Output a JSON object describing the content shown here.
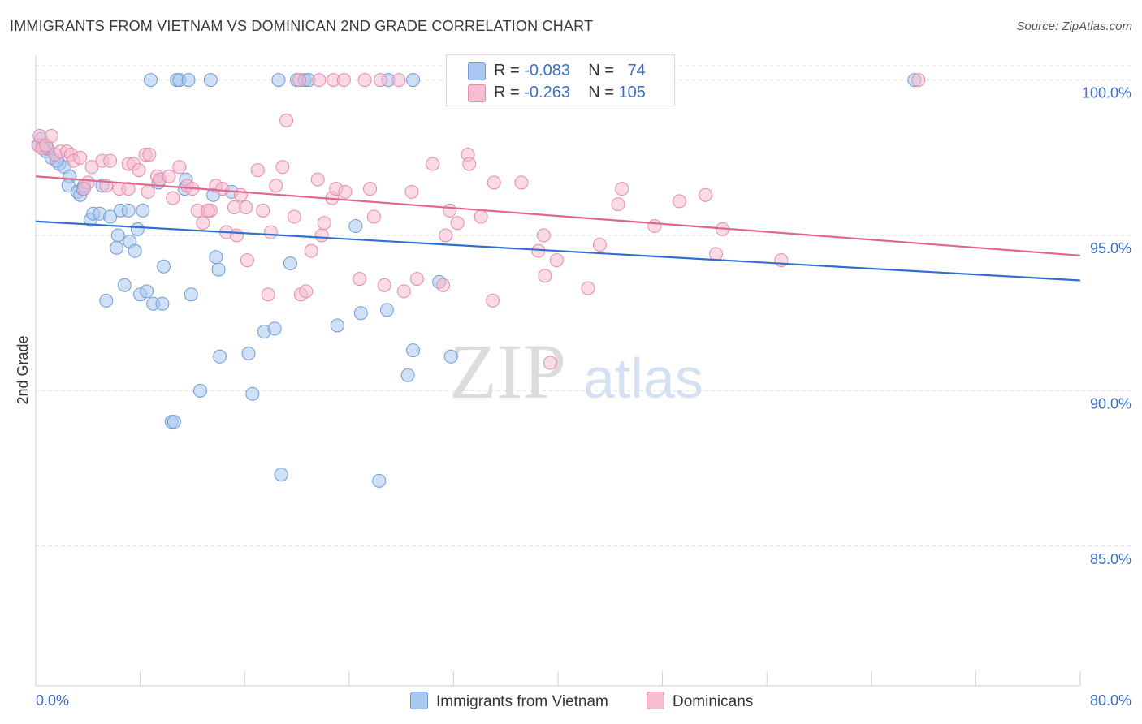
{
  "title": "IMMIGRANTS FROM VIETNAM VS DOMINICAN 2ND GRADE CORRELATION CHART",
  "source": "Source: ZipAtlas.com",
  "watermark": {
    "zip": "ZIP",
    "atlas": "atlas"
  },
  "legend": {
    "rows": [
      {
        "r_label": "R =",
        "r_value": "-0.083",
        "n_label": "N =",
        "n_value": "74",
        "fill": "#aac7f0",
        "stroke": "#6f9ad6"
      },
      {
        "r_label": "R =",
        "r_value": "-0.263",
        "n_label": "N =",
        "n_value": "105",
        "fill": "#f6bcd0",
        "stroke": "#e58aa8"
      }
    ]
  },
  "bottom_legend": [
    {
      "label": "Immigrants from Vietnam",
      "fill": "#aac7f0",
      "stroke": "#6f9ad6"
    },
    {
      "label": "Dominicans",
      "fill": "#f6bcd0",
      "stroke": "#e58aa8"
    }
  ],
  "chart_data": {
    "type": "scatter",
    "title": "IMMIGRANTS FROM VIETNAM VS DOMINICAN 2ND GRADE CORRELATION CHART",
    "xlabel": "",
    "ylabel": "2nd Grade",
    "xlim": [
      0,
      80
    ],
    "ylim": [
      80.5,
      100.8
    ],
    "x_tick_labels": [
      "0.0%",
      "80.0%"
    ],
    "y_ticks": [
      85,
      90,
      95,
      100
    ],
    "y_tick_labels": [
      "85.0%",
      "90.0%",
      "95.0%",
      "100.0%"
    ],
    "grid": true,
    "series": [
      {
        "name": "Immigrants from Vietnam",
        "color": "#6f9ad6",
        "fill": "#aac7f0",
        "line_color": "#2f6fcf",
        "trend": [
          [
            0,
            95.45
          ],
          [
            80,
            93.55
          ]
        ],
        "points": [
          [
            0.2,
            97.9
          ],
          [
            0.4,
            98.1
          ],
          [
            0.6,
            97.9
          ],
          [
            0.8,
            97.7
          ],
          [
            1.2,
            97.5
          ],
          [
            1.8,
            97.3
          ],
          [
            2.2,
            97.2
          ],
          [
            2.6,
            96.9
          ],
          [
            2.5,
            96.6
          ],
          [
            3.2,
            96.4
          ],
          [
            3.4,
            96.3
          ],
          [
            3.6,
            96.5
          ],
          [
            5.1,
            96.6
          ],
          [
            4.2,
            95.5
          ],
          [
            4.4,
            95.7
          ],
          [
            4.9,
            95.7
          ],
          [
            5.7,
            95.6
          ],
          [
            6.3,
            95.0
          ],
          [
            6.2,
            94.6
          ],
          [
            7.2,
            94.8
          ],
          [
            7.6,
            94.5
          ],
          [
            7.8,
            95.2
          ],
          [
            6.5,
            95.8
          ],
          [
            7.1,
            95.8
          ],
          [
            8.2,
            95.8
          ],
          [
            9.4,
            96.7
          ],
          [
            11.4,
            96.5
          ],
          [
            11.5,
            96.8
          ],
          [
            13.6,
            96.3
          ],
          [
            15.0,
            96.4
          ],
          [
            13.8,
            94.3
          ],
          [
            14.0,
            93.9
          ],
          [
            9.8,
            94.0
          ],
          [
            6.8,
            93.4
          ],
          [
            8.0,
            93.1
          ],
          [
            8.5,
            93.2
          ],
          [
            9.0,
            92.8
          ],
          [
            9.7,
            92.8
          ],
          [
            11.9,
            93.1
          ],
          [
            5.4,
            92.9
          ],
          [
            12.6,
            90.0
          ],
          [
            14.1,
            91.1
          ],
          [
            16.3,
            91.2
          ],
          [
            16.6,
            89.9
          ],
          [
            17.5,
            91.9
          ],
          [
            18.3,
            92.0
          ],
          [
            19.5,
            94.1
          ],
          [
            10.4,
            89.0
          ],
          [
            10.6,
            89.0
          ],
          [
            18.8,
            87.3
          ],
          [
            23.1,
            92.1
          ],
          [
            24.5,
            95.3
          ],
          [
            24.9,
            92.5
          ],
          [
            26.3,
            87.1
          ],
          [
            26.9,
            92.6
          ],
          [
            28.5,
            90.5
          ],
          [
            28.9,
            91.3
          ],
          [
            30.9,
            93.5
          ],
          [
            31.8,
            91.1
          ],
          [
            8.8,
            100.0
          ],
          [
            10.8,
            100.0
          ],
          [
            11.0,
            100.0
          ],
          [
            11.7,
            100.0
          ],
          [
            13.4,
            100.0
          ],
          [
            18.6,
            100.0
          ],
          [
            20.0,
            100.0
          ],
          [
            20.6,
            100.0
          ],
          [
            20.9,
            100.0
          ],
          [
            27.0,
            100.0
          ],
          [
            28.9,
            100.0
          ],
          [
            67.3,
            100.0
          ],
          [
            1.6,
            97.4
          ],
          [
            0.9,
            97.8
          ],
          [
            3.7,
            96.6
          ]
        ]
      },
      {
        "name": "Dominicans",
        "color": "#e58aa8",
        "fill": "#f6bcd0",
        "line_color": "#e0658f",
        "trend": [
          [
            0,
            96.9
          ],
          [
            80,
            94.35
          ]
        ],
        "points": [
          [
            0.2,
            97.9
          ],
          [
            0.3,
            98.2
          ],
          [
            0.5,
            97.8
          ],
          [
            0.8,
            97.9
          ],
          [
            1.2,
            98.2
          ],
          [
            1.5,
            97.6
          ],
          [
            1.9,
            97.7
          ],
          [
            2.4,
            97.7
          ],
          [
            2.7,
            97.6
          ],
          [
            2.9,
            97.4
          ],
          [
            3.4,
            97.5
          ],
          [
            4.3,
            97.2
          ],
          [
            4.0,
            96.7
          ],
          [
            3.7,
            96.5
          ],
          [
            5.1,
            97.4
          ],
          [
            5.4,
            96.6
          ],
          [
            5.7,
            97.4
          ],
          [
            6.4,
            96.5
          ],
          [
            7.1,
            96.5
          ],
          [
            7.1,
            97.3
          ],
          [
            7.5,
            97.3
          ],
          [
            7.9,
            97.1
          ],
          [
            8.4,
            97.6
          ],
          [
            8.7,
            97.6
          ],
          [
            8.6,
            96.4
          ],
          [
            9.3,
            96.9
          ],
          [
            9.5,
            96.8
          ],
          [
            10.2,
            96.9
          ],
          [
            10.5,
            96.2
          ],
          [
            11.0,
            97.2
          ],
          [
            11.6,
            96.6
          ],
          [
            12.0,
            96.5
          ],
          [
            12.4,
            95.8
          ],
          [
            12.8,
            95.4
          ],
          [
            13.4,
            95.8
          ],
          [
            13.8,
            96.6
          ],
          [
            14.3,
            96.5
          ],
          [
            14.6,
            95.1
          ],
          [
            15.2,
            95.9
          ],
          [
            15.4,
            95.0
          ],
          [
            15.7,
            96.3
          ],
          [
            16.1,
            95.9
          ],
          [
            16.2,
            94.2
          ],
          [
            17.0,
            97.1
          ],
          [
            17.4,
            95.8
          ],
          [
            17.8,
            93.1
          ],
          [
            18.0,
            95.1
          ],
          [
            18.4,
            96.6
          ],
          [
            18.9,
            97.2
          ],
          [
            19.2,
            98.7
          ],
          [
            19.8,
            95.6
          ],
          [
            20.3,
            93.1
          ],
          [
            20.7,
            93.2
          ],
          [
            21.1,
            94.5
          ],
          [
            21.6,
            96.8
          ],
          [
            21.9,
            95.0
          ],
          [
            22.1,
            95.4
          ],
          [
            22.7,
            96.2
          ],
          [
            23.0,
            96.5
          ],
          [
            23.7,
            96.4
          ],
          [
            24.8,
            93.6
          ],
          [
            25.6,
            96.5
          ],
          [
            25.9,
            95.6
          ],
          [
            26.7,
            93.4
          ],
          [
            28.2,
            93.2
          ],
          [
            29.2,
            93.6
          ],
          [
            28.8,
            96.4
          ],
          [
            30.4,
            97.3
          ],
          [
            31.2,
            93.4
          ],
          [
            31.4,
            95.0
          ],
          [
            31.7,
            95.8
          ],
          [
            32.3,
            95.4
          ],
          [
            33.1,
            97.6
          ],
          [
            33.2,
            97.3
          ],
          [
            34.1,
            95.6
          ],
          [
            35.0,
            92.9
          ],
          [
            35.1,
            96.7
          ],
          [
            37.2,
            96.7
          ],
          [
            38.5,
            94.5
          ],
          [
            38.9,
            95.0
          ],
          [
            39.0,
            93.7
          ],
          [
            39.9,
            94.2
          ],
          [
            39.4,
            90.9
          ],
          [
            42.3,
            93.3
          ],
          [
            43.2,
            94.7
          ],
          [
            44.6,
            96.0
          ],
          [
            44.9,
            96.5
          ],
          [
            47.4,
            95.3
          ],
          [
            49.3,
            96.1
          ],
          [
            51.3,
            96.3
          ],
          [
            52.1,
            94.4
          ],
          [
            52.6,
            95.2
          ],
          [
            57.1,
            94.2
          ],
          [
            20.2,
            100.0
          ],
          [
            21.7,
            100.0
          ],
          [
            22.8,
            100.0
          ],
          [
            23.6,
            100.0
          ],
          [
            25.2,
            100.0
          ],
          [
            26.4,
            100.0
          ],
          [
            27.8,
            100.0
          ],
          [
            33.7,
            100.0
          ],
          [
            43.7,
            100.0
          ],
          [
            44.2,
            100.0
          ],
          [
            67.6,
            100.0
          ],
          [
            13.2,
            95.8
          ]
        ]
      }
    ]
  }
}
